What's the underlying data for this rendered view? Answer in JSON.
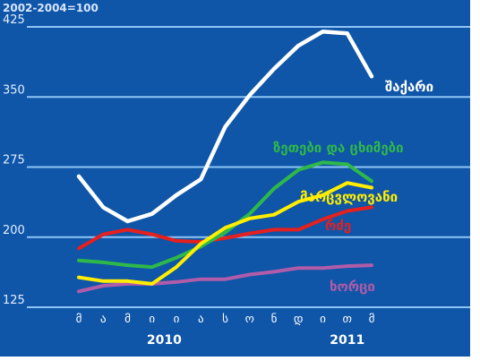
{
  "chart_data": {
    "type": "line",
    "unit_label": "2002-2004=100",
    "ylim": [
      125,
      425
    ],
    "yticks": [
      125,
      200,
      275,
      350,
      425
    ],
    "grid": true,
    "categories": [
      "მ",
      "ა",
      "მ",
      "ი",
      "ი",
      "ა",
      "ს",
      "ო",
      "ნ",
      "დ",
      "ი",
      "თ",
      "მ"
    ],
    "year_labels": [
      {
        "text": "2010",
        "at_index": 3.5
      },
      {
        "text": "2011",
        "at_index": 11
      }
    ],
    "series": [
      {
        "name": "შაქარი",
        "color": "#ffffff",
        "values": [
          265,
          232,
          217,
          225,
          245,
          262,
          318,
          352,
          380,
          405,
          420,
          418,
          372
        ]
      },
      {
        "name": "ზეთები და ცხიმები",
        "color": "#2fb84a",
        "values": [
          175,
          173,
          170,
          168,
          178,
          190,
          205,
          225,
          252,
          272,
          280,
          278,
          260
        ]
      },
      {
        "name": "მარცვლოვანი",
        "color": "#ffee00",
        "values": [
          157,
          153,
          153,
          150,
          168,
          193,
          210,
          220,
          224,
          238,
          245,
          258,
          253
        ]
      },
      {
        "name": "რძე",
        "color": "#e5201e",
        "values": [
          188,
          203,
          208,
          203,
          196,
          195,
          199,
          204,
          208,
          208,
          219,
          228,
          232
        ]
      },
      {
        "name": "ხორცი",
        "color": "#b05ca8",
        "values": [
          142,
          148,
          150,
          150,
          152,
          155,
          155,
          160,
          163,
          167,
          167,
          169,
          170
        ]
      }
    ]
  }
}
